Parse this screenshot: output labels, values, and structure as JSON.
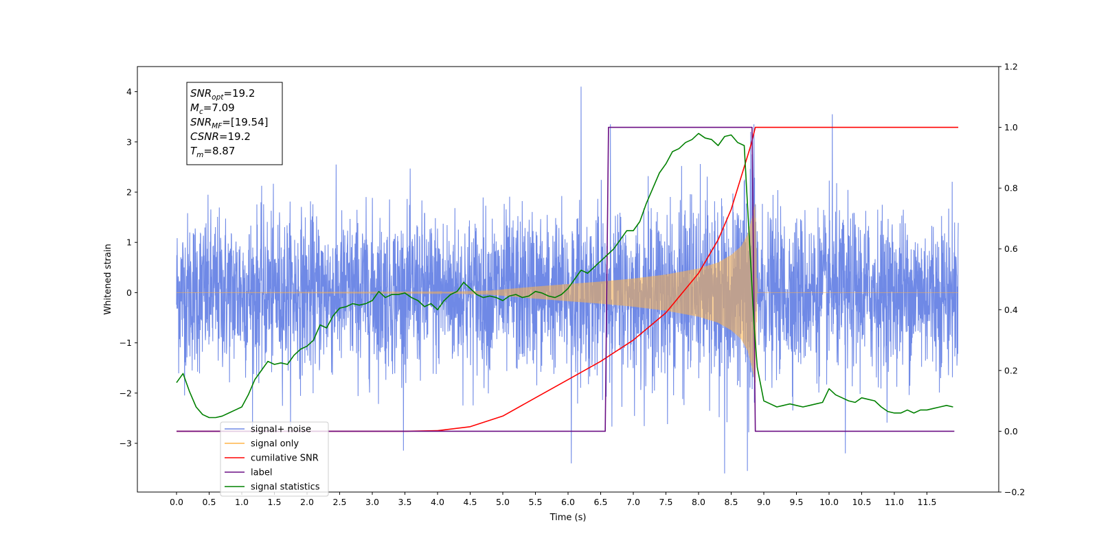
{
  "chart_data": {
    "type": "line",
    "xlabel": "Time (s)",
    "ylabel_left": "Whitened strain",
    "ylabel_right": "",
    "xlim": [
      -0.6,
      12.6
    ],
    "ylim_left": [
      -3.97,
      4.5
    ],
    "ylim_right": [
      -0.2,
      1.2
    ],
    "x_ticks": [
      "0.0",
      "0.5",
      "1.0",
      "1.5",
      "2.0",
      "2.5",
      "3.0",
      "3.5",
      "4.0",
      "4.5",
      "5.0",
      "5.5",
      "6.0",
      "6.5",
      "7.0",
      "7.5",
      "8.0",
      "8.5",
      "9.0",
      "9.5",
      "10.0",
      "10.5",
      "11.0",
      "11.5"
    ],
    "y_ticks_left": [
      -3,
      -2,
      -1,
      0,
      1,
      2,
      3,
      4
    ],
    "y_ticks_right": [
      "-0.2",
      "0.0",
      "0.2",
      "0.4",
      "0.6",
      "0.8",
      "1.0",
      "1.2"
    ],
    "grid": false,
    "colors": {
      "signal_noise": "#6f89e6",
      "signal_only": "#ffb347",
      "cumulative_snr": "#ff0000",
      "label": "#6a0d83",
      "signal_statistics": "#008000"
    },
    "annotation": {
      "lines": [
        {
          "base": "SNR",
          "sub": "opt",
          "value": "=19.2"
        },
        {
          "base": "M",
          "sub": "c",
          "value": "=7.09"
        },
        {
          "base": "SNR",
          "sub": "MF",
          "value": "=[19.54]"
        },
        {
          "base": "CSNR",
          "sub": "",
          "value": "=19.2"
        },
        {
          "base": "T",
          "sub": "m",
          "value": "=8.87"
        }
      ]
    },
    "legend": {
      "placement": "lower-left",
      "entries": [
        "signal+ noise",
        "signal only",
        "cumilative SNR",
        "label",
        "signal statistics"
      ]
    },
    "series": [
      {
        "name": "signal+ noise",
        "axis": "left",
        "style": "noise",
        "x_range": [
          0.0,
          11.98
        ],
        "typical_amplitude": 1.8,
        "max": 4.1,
        "min": -3.6,
        "markers": [
          {
            "x": 6.2,
            "y": 4.1
          },
          {
            "x": 10.05,
            "y": 3.55
          },
          {
            "x": 8.4,
            "y": -3.6
          },
          {
            "x": 8.75,
            "y": -3.55
          },
          {
            "x": 6.05,
            "y": -3.4
          },
          {
            "x": 10.25,
            "y": -3.2
          },
          {
            "x": 6.65,
            "y": 3.35
          },
          {
            "x": 8.85,
            "y": 3.35
          }
        ]
      },
      {
        "name": "signal only",
        "axis": "left",
        "style": "chirp",
        "x_range": [
          0.0,
          11.98
        ],
        "merger_time": 8.87,
        "envelope": [
          [
            0.0,
            0.0
          ],
          [
            4.0,
            0.01
          ],
          [
            4.8,
            0.04
          ],
          [
            5.5,
            0.12
          ],
          [
            6.0,
            0.17
          ],
          [
            6.5,
            0.22
          ],
          [
            7.0,
            0.28
          ],
          [
            7.5,
            0.36
          ],
          [
            8.0,
            0.48
          ],
          [
            8.3,
            0.6
          ],
          [
            8.5,
            0.75
          ],
          [
            8.65,
            0.92
          ],
          [
            8.75,
            1.15
          ],
          [
            8.82,
            1.5
          ],
          [
            8.87,
            1.8
          ],
          [
            8.9,
            0.0
          ],
          [
            11.98,
            0.0
          ]
        ]
      },
      {
        "name": "cumilative SNR",
        "axis": "right",
        "x": [
          0.0,
          3.5,
          4.0,
          4.5,
          5.0,
          5.5,
          6.0,
          6.5,
          7.0,
          7.5,
          8.0,
          8.3,
          8.5,
          8.7,
          8.8,
          8.87,
          9.0,
          11.98
        ],
        "values": [
          0.0,
          0.0,
          0.002,
          0.015,
          0.05,
          0.11,
          0.17,
          0.23,
          0.3,
          0.39,
          0.52,
          0.63,
          0.73,
          0.87,
          0.94,
          1.0,
          1.0,
          1.0
        ]
      },
      {
        "name": "label",
        "axis": "right",
        "x": [
          0.0,
          6.57,
          6.62,
          8.82,
          8.87,
          11.92
        ],
        "values": [
          0.0,
          0.0,
          1.0,
          1.0,
          0.0,
          0.0
        ]
      },
      {
        "name": "signal statistics",
        "axis": "right",
        "x": [
          0.0,
          0.1,
          0.2,
          0.3,
          0.4,
          0.5,
          0.6,
          0.7,
          0.8,
          0.9,
          1.0,
          1.1,
          1.2,
          1.3,
          1.4,
          1.5,
          1.6,
          1.7,
          1.8,
          1.9,
          2.0,
          2.1,
          2.2,
          2.3,
          2.4,
          2.5,
          2.6,
          2.7,
          2.8,
          2.9,
          3.0,
          3.1,
          3.2,
          3.3,
          3.4,
          3.5,
          3.6,
          3.7,
          3.8,
          3.9,
          4.0,
          4.1,
          4.2,
          4.3,
          4.4,
          4.5,
          4.6,
          4.7,
          4.8,
          4.9,
          5.0,
          5.1,
          5.2,
          5.3,
          5.4,
          5.5,
          5.6,
          5.7,
          5.8,
          5.9,
          6.0,
          6.1,
          6.2,
          6.3,
          6.4,
          6.5,
          6.6,
          6.7,
          6.8,
          6.9,
          7.0,
          7.1,
          7.2,
          7.3,
          7.4,
          7.5,
          7.6,
          7.7,
          7.8,
          7.9,
          8.0,
          8.1,
          8.2,
          8.3,
          8.4,
          8.5,
          8.6,
          8.7,
          8.8,
          8.85,
          8.9,
          9.0,
          9.1,
          9.2,
          9.3,
          9.4,
          9.5,
          9.6,
          9.7,
          9.8,
          9.9,
          10.0,
          10.1,
          10.2,
          10.3,
          10.4,
          10.5,
          10.6,
          10.7,
          10.8,
          10.9,
          11.0,
          11.1,
          11.2,
          11.3,
          11.4,
          11.5,
          11.6,
          11.7,
          11.8,
          11.9
        ],
        "values": [
          0.16,
          0.19,
          0.13,
          0.08,
          0.055,
          0.045,
          0.045,
          0.05,
          0.06,
          0.07,
          0.08,
          0.12,
          0.17,
          0.2,
          0.23,
          0.22,
          0.225,
          0.22,
          0.25,
          0.27,
          0.28,
          0.3,
          0.35,
          0.34,
          0.38,
          0.405,
          0.41,
          0.42,
          0.415,
          0.42,
          0.43,
          0.46,
          0.44,
          0.45,
          0.45,
          0.455,
          0.44,
          0.43,
          0.41,
          0.42,
          0.4,
          0.43,
          0.45,
          0.46,
          0.49,
          0.47,
          0.45,
          0.44,
          0.445,
          0.44,
          0.43,
          0.445,
          0.45,
          0.44,
          0.445,
          0.46,
          0.455,
          0.445,
          0.44,
          0.45,
          0.47,
          0.5,
          0.53,
          0.52,
          0.54,
          0.56,
          0.58,
          0.6,
          0.63,
          0.66,
          0.66,
          0.69,
          0.75,
          0.8,
          0.85,
          0.88,
          0.92,
          0.93,
          0.95,
          0.96,
          0.98,
          0.965,
          0.96,
          0.94,
          0.97,
          0.975,
          0.95,
          0.94,
          0.55,
          0.35,
          0.21,
          0.1,
          0.09,
          0.08,
          0.085,
          0.09,
          0.085,
          0.08,
          0.085,
          0.09,
          0.095,
          0.14,
          0.12,
          0.11,
          0.1,
          0.095,
          0.11,
          0.105,
          0.1,
          0.08,
          0.065,
          0.06,
          0.06,
          0.07,
          0.06,
          0.07,
          0.07,
          0.075,
          0.08,
          0.085,
          0.08
        ]
      }
    ]
  }
}
